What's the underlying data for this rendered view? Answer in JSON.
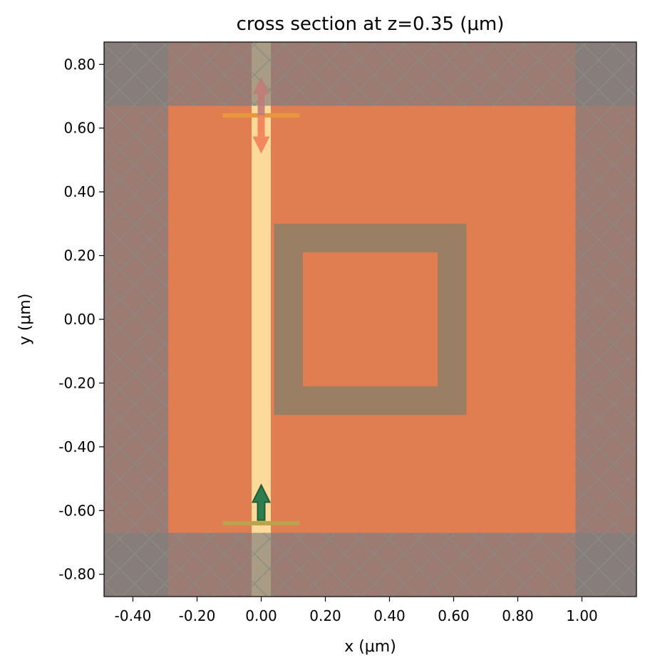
{
  "chart_data": {
    "type": "simulation-cross-section",
    "title": "cross section at z=0.35 (μm)",
    "xlabel": "x (μm)",
    "ylabel": "y (μm)",
    "xlim": [
      -0.49,
      1.17
    ],
    "ylim": [
      -0.87,
      0.87
    ],
    "xticks": [
      -0.4,
      -0.2,
      0.0,
      0.2,
      0.4,
      0.6,
      0.8,
      1.0
    ],
    "xtick_labels": [
      "-0.40",
      "-0.20",
      "0.00",
      "0.20",
      "0.40",
      "0.60",
      "0.80",
      "1.00"
    ],
    "yticks": [
      0.8,
      0.6,
      0.4,
      0.2,
      0.0,
      -0.2,
      -0.4,
      -0.6,
      -0.8
    ],
    "ytick_labels": [
      "0.80",
      "0.60",
      "0.40",
      "0.20",
      "0.00",
      "-0.20",
      "-0.40",
      "-0.60",
      "-0.80"
    ],
    "grid": false,
    "background_medium": {
      "x": [
        -0.49,
        1.17
      ],
      "y": [
        -0.87,
        0.87
      ],
      "color": "#e07e52"
    },
    "simulation_domain": {
      "x": [
        -0.29,
        0.98
      ],
      "y": [
        -0.67,
        0.67
      ]
    },
    "pml_color": "#9c7b72",
    "pml_corner_color": "#877e7b",
    "pml_hatch_color": "#8a8a82",
    "waveguide": {
      "x": [
        -0.03,
        0.03
      ],
      "y": [
        -0.87,
        0.87
      ],
      "color": "#fdd99a",
      "pml_overlap_color": "#a99c84"
    },
    "ring_resonator": {
      "outer_x": [
        0.04,
        0.64
      ],
      "outer_y": [
        -0.3,
        0.3
      ],
      "inner_x": [
        0.13,
        0.55
      ],
      "inner_y": [
        -0.21,
        0.21
      ],
      "color": "#9b7f65"
    },
    "source": {
      "x": [
        -0.12,
        0.12
      ],
      "y": -0.64,
      "direction": "+y",
      "line_color": "#bba34e",
      "arrow_color": "#2e7d4e",
      "arrow_edge": "#1f5e3a",
      "arrow_tip_y": -0.52,
      "arrow_tail_y": -0.63
    },
    "monitor": {
      "x": [
        -0.12,
        0.12
      ],
      "y": 0.64,
      "direction": "-y",
      "line_color": "#e9973e",
      "arrow_color": "#f2845c",
      "arrow_tip_y": 0.52,
      "arrow_tail_y": 0.64,
      "ghost_arrow_color": "#c07c78",
      "ghost_arrow_tip_y": 0.76
    }
  }
}
